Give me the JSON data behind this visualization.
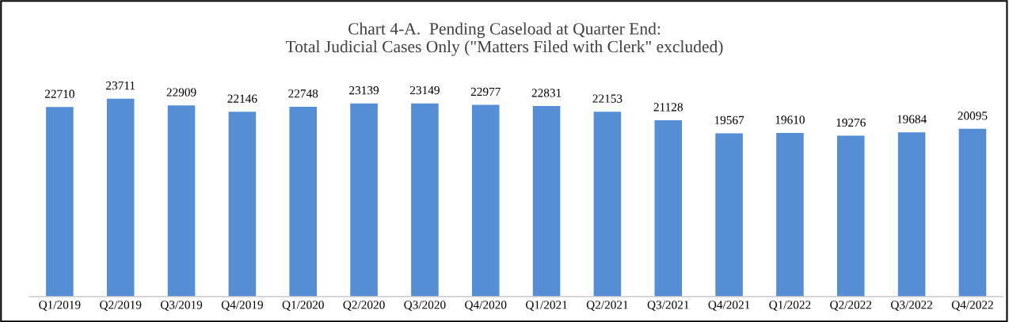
{
  "chart_data": {
    "type": "bar",
    "title": "Chart 4-A.  Pending Caseload at Quarter End:\nTotal Judicial Cases Only (\"Matters Filed with Clerk\" excluded)",
    "categories": [
      "Q1/2019",
      "Q2/2019",
      "Q3/2019",
      "Q4/2019",
      "Q1/2020",
      "Q2/2020",
      "Q3/2020",
      "Q4/2020",
      "Q1/2021",
      "Q2/2021",
      "Q3/2021",
      "Q4/2021",
      "Q1/2022",
      "Q2/2022",
      "Q3/2022",
      "Q4/2022"
    ],
    "values": [
      22710,
      23711,
      22909,
      22146,
      22748,
      23139,
      23149,
      22977,
      22831,
      22153,
      21128,
      19567,
      19610,
      19276,
      19684,
      20095
    ],
    "color": "#558ed5",
    "tick_labels": "x",
    "data_labels": true,
    "grid": false,
    "legend": false
  }
}
